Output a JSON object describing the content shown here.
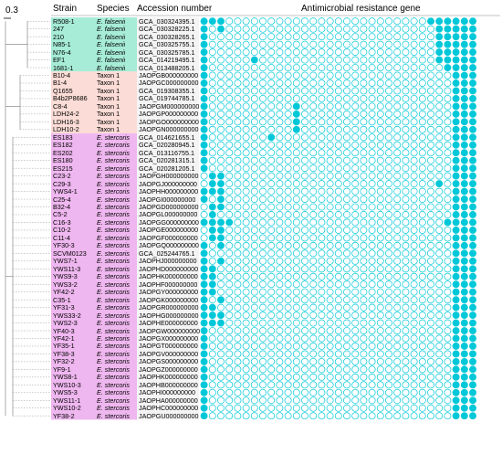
{
  "scale_label": "0.3",
  "headers": {
    "strain": "Strain",
    "species": "Species",
    "accession": "Accession number",
    "genes": "Antimicrobial resistance gene"
  },
  "colors": {
    "falsenii": "#a6ecd6",
    "taxon1": "#fbdcd6",
    "stercoris": "#efb7ef",
    "accession_bg": "#f4f4f4",
    "filled": "#00c8d8",
    "outline": "#00c8d8"
  },
  "rows": [
    {
      "strain": "R508-1",
      "species": "E. falsenii",
      "accession": "GCA_030324395.1",
      "group": "falsenii"
    },
    {
      "strain": "247",
      "species": "E. falsenii",
      "accession": "GCA_030328225.1",
      "group": "falsenii"
    },
    {
      "strain": "210",
      "species": "E. falsenii",
      "accession": "GCA_030328265.1",
      "group": "falsenii"
    },
    {
      "strain": "N85-1",
      "species": "E. falsenii",
      "accession": "GCA_030325755.1",
      "group": "falsenii"
    },
    {
      "strain": "N76-4",
      "species": "E. falsenii",
      "accession": "GCA_030325785.1",
      "group": "falsenii"
    },
    {
      "strain": "EF1",
      "species": "E. falsenii",
      "accession": "GCA_014219495.1",
      "group": "falsenii"
    },
    {
      "strain": "1681-1",
      "species": "E. falsenii",
      "accession": "GCA_013488205.1",
      "group": "falsenii"
    },
    {
      "strain": "B10-4",
      "species": "Taxon 1",
      "accession": "JAOPGB000000000",
      "group": "taxon1"
    },
    {
      "strain": "B1-4",
      "species": "Taxon 1",
      "accession": "JAOPGC000000000",
      "group": "taxon1"
    },
    {
      "strain": "Q1655",
      "species": "Taxon 1",
      "accession": "GCA_019308355.1",
      "group": "taxon1"
    },
    {
      "strain": "B4b2P8686",
      "species": "Taxon 1",
      "accession": "GCA_019744785.1",
      "group": "taxon1"
    },
    {
      "strain": "C8-4",
      "species": "Taxon 1",
      "accession": "JAOPGM000000000",
      "group": "taxon1"
    },
    {
      "strain": "LDH24-2",
      "species": "Taxon 1",
      "accession": "JAOPGP000000000",
      "group": "taxon1"
    },
    {
      "strain": "LDH16-3",
      "species": "Taxon 1",
      "accession": "JAOPGO000000000",
      "group": "taxon1"
    },
    {
      "strain": "LDH10-2",
      "species": "Taxon 1",
      "accession": "JAOPGN000000000",
      "group": "taxon1"
    },
    {
      "strain": "ES183",
      "species": "E. stercoris",
      "accession": "GCA_014621655.1",
      "group": "stercoris"
    },
    {
      "strain": "ES182",
      "species": "E. stercoris",
      "accession": "GCA_020280945.1",
      "group": "stercoris"
    },
    {
      "strain": "ES202",
      "species": "E. stercoris",
      "accession": "GCA_013116755.1",
      "group": "stercoris"
    },
    {
      "strain": "ES180",
      "species": "E. stercoris",
      "accession": "GCA_020281315.1",
      "group": "stercoris"
    },
    {
      "strain": "ES215",
      "species": "E. stercoris",
      "accession": "GCA_020281205.1",
      "group": "stercoris"
    },
    {
      "strain": "C23-2",
      "species": "E. stercoris",
      "accession": "JAOPGH000000000",
      "group": "stercoris"
    },
    {
      "strain": "C29-3",
      "species": "E. stercoris",
      "accession": "JAOPGJ000000000",
      "group": "stercoris"
    },
    {
      "strain": "YWS4-1",
      "species": "E. stercoris",
      "accession": "JAOPHH000000000",
      "group": "stercoris"
    },
    {
      "strain": "C25-4",
      "species": "E. stercoris",
      "accession": "JAOPGI000000000",
      "group": "stercoris"
    },
    {
      "strain": "B32-4",
      "species": "E. stercoris",
      "accession": "JAOPGD000000000",
      "group": "stercoris"
    },
    {
      "strain": "C5-2",
      "species": "E. stercoris",
      "accession": "JAOPGL000000000",
      "group": "stercoris"
    },
    {
      "strain": "C16-3",
      "species": "E. stercoris",
      "accession": "JAOPGG000000000",
      "group": "stercoris"
    },
    {
      "strain": "C10-2",
      "species": "E. stercoris",
      "accession": "JAOPGE000000000",
      "group": "stercoris"
    },
    {
      "strain": "C11-4",
      "species": "E. stercoris",
      "accession": "JAOPGF000000000",
      "group": "stercoris"
    },
    {
      "strain": "YF30-3",
      "species": "E. stercoris",
      "accession": "JAOPGQ000000000",
      "group": "stercoris"
    },
    {
      "strain": "SCVM0123",
      "species": "E. stercoris",
      "accession": "GCA_025244765.1",
      "group": "stercoris"
    },
    {
      "strain": "YWS7-1",
      "species": "E. stercoris",
      "accession": "JAOPHJ000000000",
      "group": "stercoris"
    },
    {
      "strain": "YWS11-3",
      "species": "E. stercoris",
      "accession": "JAOPHD000000000",
      "group": "stercoris"
    },
    {
      "strain": "YWS9-3",
      "species": "E. stercoris",
      "accession": "JAOPHK000000000",
      "group": "stercoris"
    },
    {
      "strain": "YWS3-2",
      "species": "E. stercoris",
      "accession": "JAOPHF000000000",
      "group": "stercoris"
    },
    {
      "strain": "YF42-2",
      "species": "E. stercoris",
      "accession": "JAOPGY000000000",
      "group": "stercoris"
    },
    {
      "strain": "C35-1",
      "species": "E. stercoris",
      "accession": "JAOPGK000000000",
      "group": "stercoris"
    },
    {
      "strain": "YF31-3",
      "species": "E. stercoris",
      "accession": "JAOPGR000000000",
      "group": "stercoris"
    },
    {
      "strain": "YWS33-2",
      "species": "E. stercoris",
      "accession": "JAOPHG000000000",
      "group": "stercoris"
    },
    {
      "strain": "YWS2-3",
      "species": "E. stercoris",
      "accession": "JAOPHE000000000",
      "group": "stercoris"
    },
    {
      "strain": "YF40-3",
      "species": "E. stercoris",
      "accession": "JAOPGW000000000",
      "group": "stercoris"
    },
    {
      "strain": "YF42-1",
      "species": "E. stercoris",
      "accession": "JAOPGX000000000",
      "group": "stercoris"
    },
    {
      "strain": "YF35-1",
      "species": "E. stercoris",
      "accession": "JAOPGT000000000",
      "group": "stercoris"
    },
    {
      "strain": "YF38-3",
      "species": "E. stercoris",
      "accession": "JAOPGV000000000",
      "group": "stercoris"
    },
    {
      "strain": "YF32-2",
      "species": "E. stercoris",
      "accession": "JAOPGS000000000",
      "group": "stercoris"
    },
    {
      "strain": "YF9-1",
      "species": "E. stercoris",
      "accession": "JAOPGZ000000000",
      "group": "stercoris"
    },
    {
      "strain": "YWS8-1",
      "species": "E. stercoris",
      "accession": "JAOPHK000000000",
      "group": "stercoris"
    },
    {
      "strain": "YWS10-3",
      "species": "E. stercoris",
      "accession": "JAOPHB000000000",
      "group": "stercoris"
    },
    {
      "strain": "YWS5-3",
      "species": "E. stercoris",
      "accession": "JAOPHI000000000",
      "group": "stercoris"
    },
    {
      "strain": "YWS11-1",
      "species": "E. stercoris",
      "accession": "JAOPHA000000000",
      "group": "stercoris"
    },
    {
      "strain": "YWS10-2",
      "species": "E. stercoris",
      "accession": "JAOPHC000000000",
      "group": "stercoris"
    },
    {
      "strain": "YF38-2",
      "species": "E. stercoris",
      "accession": "JAOPGU000000000",
      "group": "stercoris"
    }
  ],
  "gene_columns": 33,
  "filled_matrix": [
    [
      0,
      1,
      2,
      27,
      28,
      29,
      30,
      31,
      32
    ],
    [
      0,
      2,
      28,
      29,
      30,
      31,
      32
    ],
    [
      0,
      28,
      29,
      30,
      31,
      32
    ],
    [
      0,
      28,
      29,
      30,
      31,
      32
    ],
    [
      0,
      28,
      29,
      30,
      31,
      32
    ],
    [
      0,
      6,
      28,
      29,
      30,
      31,
      32
    ],
    [
      0,
      29,
      30,
      31,
      32
    ],
    [
      0,
      30,
      31,
      32
    ],
    [
      0,
      30,
      31,
      32
    ],
    [
      0,
      30,
      31,
      32
    ],
    [
      0,
      30,
      31,
      32
    ],
    [
      0,
      11,
      30,
      31,
      32
    ],
    [
      0,
      11,
      30,
      31,
      32
    ],
    [
      0,
      11,
      30,
      31,
      32
    ],
    [
      0,
      11,
      30,
      31,
      32
    ],
    [
      0,
      8,
      30,
      31,
      32
    ],
    [
      0,
      30,
      31,
      32
    ],
    [
      0,
      30,
      31,
      32
    ],
    [
      0,
      30,
      31,
      32
    ],
    [
      0,
      30,
      31,
      32
    ],
    [
      1,
      2,
      30,
      31,
      32
    ],
    [
      1,
      2,
      28,
      30,
      31,
      32
    ],
    [
      0,
      1,
      2,
      30,
      31,
      32
    ],
    [
      0,
      2,
      30,
      31,
      32
    ],
    [
      1,
      2,
      30,
      31,
      32
    ],
    [
      1,
      30,
      31,
      32
    ],
    [
      0,
      1,
      2,
      3,
      29,
      30,
      31,
      32
    ],
    [
      1,
      2,
      30,
      31,
      32
    ],
    [
      1,
      2,
      30,
      31,
      32
    ],
    [
      0,
      2,
      30,
      31,
      32
    ],
    [
      0,
      30,
      31,
      32
    ],
    [
      0,
      2,
      30,
      31,
      32
    ],
    [
      0,
      1,
      30,
      31,
      32
    ],
    [
      0,
      1,
      30,
      31,
      32
    ],
    [
      0,
      1,
      30,
      31,
      32
    ],
    [
      0,
      1,
      30,
      31,
      32
    ],
    [
      0,
      2,
      30,
      31,
      32
    ],
    [
      0,
      1,
      30,
      31,
      32
    ],
    [
      0,
      1,
      2,
      30,
      31,
      32
    ],
    [
      0,
      1,
      2,
      30,
      31,
      32
    ],
    [
      0,
      30,
      31,
      32
    ],
    [
      0,
      30,
      31,
      32
    ],
    [
      0,
      30,
      31,
      32
    ],
    [
      0,
      30,
      31,
      32
    ],
    [
      0,
      30,
      31,
      32
    ],
    [
      0,
      30,
      31,
      32
    ],
    [
      0,
      30,
      31,
      32
    ],
    [
      0,
      30,
      31,
      32
    ],
    [
      0,
      30,
      31,
      32
    ],
    [
      0,
      30,
      31,
      32
    ],
    [
      0,
      30,
      31,
      32
    ],
    [
      0,
      30,
      31,
      32
    ]
  ]
}
